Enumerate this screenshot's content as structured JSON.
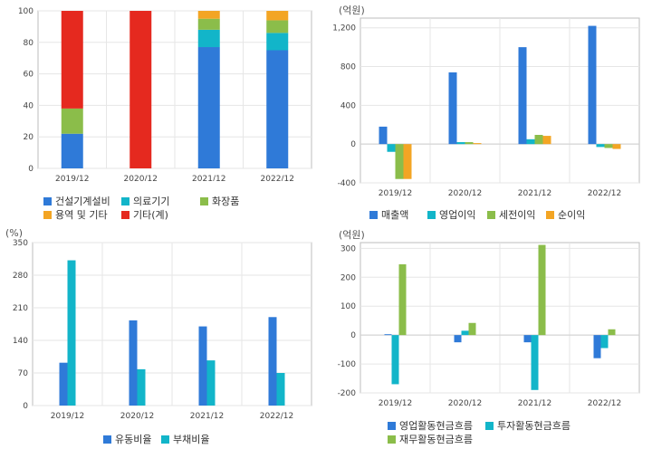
{
  "colors": {
    "blue": "#2f7ad8",
    "teal": "#12b5c9",
    "green": "#8bbd4a",
    "orange": "#f3a524",
    "red": "#e5291f",
    "grid": "#e6e6e6",
    "frame": "#bdbdbd"
  },
  "chart_data": [
    {
      "id": "composition",
      "type": "bar",
      "stacked": true,
      "unit": "",
      "categories": [
        "2019/12",
        "2020/12",
        "2021/12",
        "2022/12"
      ],
      "ylim": [
        0,
        100
      ],
      "yticks": [
        "0",
        "20",
        "40",
        "60",
        "80",
        "100"
      ],
      "series": [
        {
          "name": "건설기계설비",
          "color": "blue",
          "values": [
            22,
            0,
            77,
            75
          ]
        },
        {
          "name": "의료기기",
          "color": "teal",
          "values": [
            0,
            0,
            11,
            11
          ]
        },
        {
          "name": "화장품",
          "color": "green",
          "values": [
            16,
            0,
            7,
            8
          ]
        },
        {
          "name": "용역 및 기타",
          "color": "orange",
          "values": [
            0,
            0,
            5,
            6
          ]
        },
        {
          "name": "기타(계)",
          "color": "red",
          "values": [
            62,
            100,
            0,
            0
          ]
        }
      ]
    },
    {
      "id": "income",
      "type": "bar",
      "unit": "(억원)",
      "categories": [
        "2019/12",
        "2020/12",
        "2021/12",
        "2022/12"
      ],
      "ylim": [
        -400,
        1300
      ],
      "yticks": [
        "-400",
        "0",
        "400",
        "800",
        "1,200"
      ],
      "series": [
        {
          "name": "매출액",
          "color": "blue",
          "values": [
            180,
            740,
            1000,
            1220
          ]
        },
        {
          "name": "영업이익",
          "color": "teal",
          "values": [
            -80,
            20,
            50,
            -30
          ]
        },
        {
          "name": "세전이익",
          "color": "green",
          "values": [
            -360,
            20,
            95,
            -40
          ]
        },
        {
          "name": "순이익",
          "color": "orange",
          "values": [
            -360,
            10,
            85,
            -50
          ]
        }
      ]
    },
    {
      "id": "ratios",
      "type": "bar",
      "unit": "(%)",
      "categories": [
        "2019/12",
        "2020/12",
        "2021/12",
        "2022/12"
      ],
      "ylim": [
        0,
        350
      ],
      "yticks": [
        "0",
        "70",
        "140",
        "210",
        "280",
        "350"
      ],
      "series": [
        {
          "name": "유동비율",
          "color": "blue",
          "values": [
            92,
            183,
            170,
            190
          ]
        },
        {
          "name": "부채비율",
          "color": "teal",
          "values": [
            312,
            78,
            97,
            70
          ]
        }
      ]
    },
    {
      "id": "cashflow",
      "type": "bar",
      "unit": "(억원)",
      "categories": [
        "2019/12",
        "2020/12",
        "2021/12",
        "2022/12"
      ],
      "ylim": [
        -200,
        320
      ],
      "yticks": [
        "-200",
        "-100",
        "0",
        "100",
        "200",
        "300"
      ],
      "series": [
        {
          "name": "영업활동현금흐름",
          "color": "blue",
          "values": [
            3,
            -25,
            -25,
            -80
          ]
        },
        {
          "name": "투자활동현금흐름",
          "color": "teal",
          "values": [
            -170,
            15,
            -190,
            -45
          ]
        },
        {
          "name": "재무활동현금흐름",
          "color": "green",
          "values": [
            245,
            42,
            312,
            20
          ]
        }
      ]
    }
  ]
}
